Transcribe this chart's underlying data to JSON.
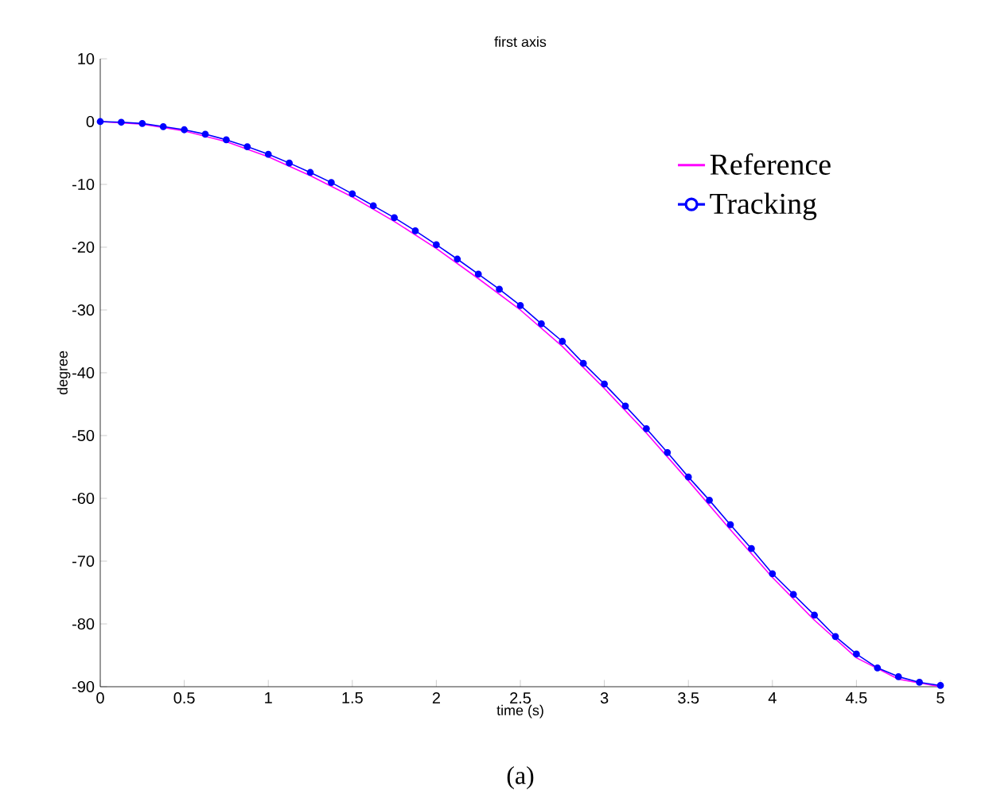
{
  "chart_data": {
    "type": "line",
    "title": "first axis",
    "xlabel": "time (s)",
    "ylabel": "degree",
    "annotations": [
      "(a)"
    ],
    "xlim": [
      0,
      5
    ],
    "ylim": [
      -90,
      10
    ],
    "xticks": [
      0,
      0.5,
      1,
      1.5,
      2,
      2.5,
      3,
      3.5,
      4,
      4.5,
      5
    ],
    "yticks": [
      -90,
      -80,
      -70,
      -60,
      -50,
      -40,
      -30,
      -20,
      -10,
      0,
      10
    ],
    "grid": false,
    "legend": "right",
    "series": [
      {
        "name": "Reference",
        "color": "#ff00ff",
        "marker": "none",
        "x": [
          0,
          0.25,
          0.5,
          0.75,
          1,
          1.25,
          1.5,
          1.75,
          2,
          2.25,
          2.5,
          2.75,
          3,
          3.25,
          3.5,
          3.75,
          4,
          4.25,
          4.5,
          4.75,
          5
        ],
        "values": [
          0,
          -0.4,
          -1.5,
          -3.2,
          -5.6,
          -8.6,
          -12.0,
          -15.9,
          -20.2,
          -25.0,
          -30.0,
          -35.8,
          -42.5,
          -49.6,
          -57.2,
          -65.0,
          -72.6,
          -79.4,
          -85.4,
          -88.8,
          -90
        ]
      },
      {
        "name": "Tracking",
        "color": "#0000ff",
        "marker": "circle",
        "x": [
          0,
          0.125,
          0.25,
          0.375,
          0.5,
          0.625,
          0.75,
          0.875,
          1,
          1.125,
          1.25,
          1.375,
          1.5,
          1.625,
          1.75,
          1.875,
          2,
          2.125,
          2.25,
          2.375,
          2.5,
          2.625,
          2.75,
          2.875,
          3,
          3.125,
          3.25,
          3.375,
          3.5,
          3.625,
          3.75,
          3.875,
          4,
          4.125,
          4.25,
          4.375,
          4.5,
          4.625,
          4.75,
          4.875,
          5
        ],
        "values": [
          0,
          -0.1,
          -0.3,
          -0.8,
          -1.3,
          -2.0,
          -2.9,
          -4.0,
          -5.2,
          -6.6,
          -8.1,
          -9.7,
          -11.5,
          -13.4,
          -15.3,
          -17.4,
          -19.6,
          -21.9,
          -24.3,
          -26.7,
          -29.3,
          -32.2,
          -35.0,
          -38.5,
          -41.8,
          -45.3,
          -48.9,
          -52.7,
          -56.6,
          -60.3,
          -64.2,
          -68.0,
          -72.0,
          -75.3,
          -78.6,
          -82.0,
          -84.8,
          -87.0,
          -88.4,
          -89.3,
          -89.8
        ]
      }
    ]
  }
}
